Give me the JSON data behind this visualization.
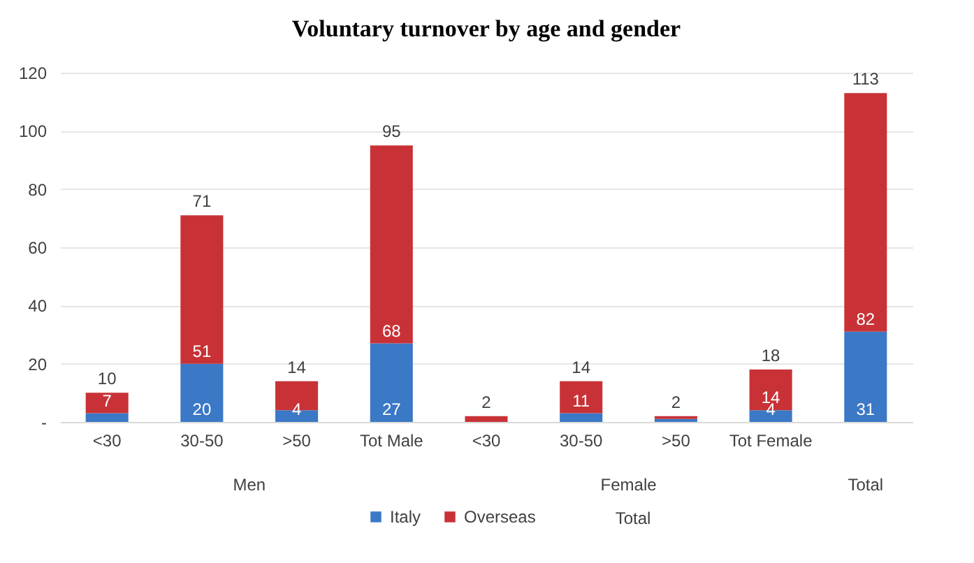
{
  "chart_data": {
    "type": "bar",
    "title": "Voluntary turnover by age and gender",
    "stacked": true,
    "categories": [
      "<30",
      "30-50",
      ">50",
      "Tot Male",
      "<30",
      "30-50",
      ">50",
      "Tot Female",
      null
    ],
    "series": [
      {
        "name": "Italy",
        "color": "#3b78c6",
        "values": [
          3,
          20,
          4,
          27,
          0,
          3,
          1,
          4,
          31
        ],
        "value_labels": [
          null,
          "20",
          "4",
          "27",
          null,
          null,
          null,
          "4",
          "31"
        ]
      },
      {
        "name": "Overseas",
        "color": "#c83236",
        "values": [
          7,
          51,
          10,
          68,
          2,
          11,
          1,
          14,
          82
        ],
        "value_labels": [
          "7",
          "51",
          null,
          "68",
          null,
          "11",
          null,
          "14",
          "82"
        ]
      }
    ],
    "totals": [
      "10",
      "71",
      "14",
      "95",
      "2",
      "14",
      "2",
      "18",
      "113"
    ],
    "annotations": [
      "Men",
      "Female",
      "Total",
      "Total"
    ],
    "ylim": [
      0,
      120
    ],
    "yticks": [
      {
        "value": 0,
        "label": "-"
      },
      20,
      40,
      60,
      80,
      100,
      120
    ],
    "grid": "y",
    "legend": "bottom"
  }
}
